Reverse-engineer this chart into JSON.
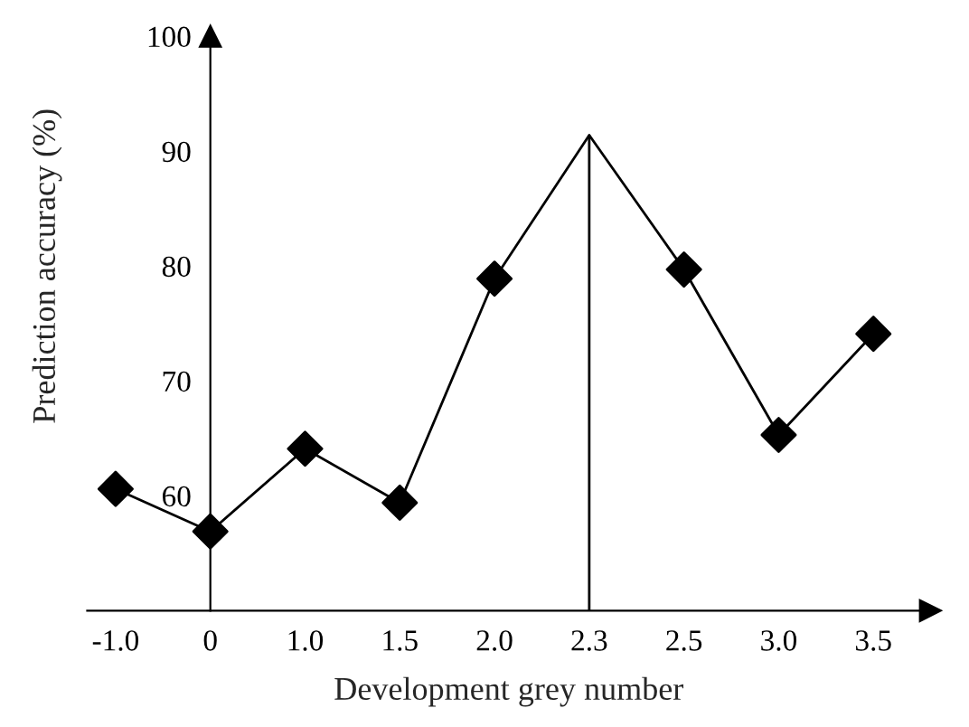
{
  "chart_data": {
    "type": "line",
    "xlabel": "Development grey number",
    "ylabel": "Prediction accuracy (%)",
    "categories": [
      "-1.0",
      "0",
      "1.0",
      "1.5",
      "2.0",
      "2.3",
      "2.5",
      "3.0",
      "3.5"
    ],
    "series": [
      {
        "color": "#000000",
        "marker": "none",
        "line_style": "solid",
        "values": [
          60.6,
          56.9,
          64.1,
          59.4,
          78.9,
          91.4,
          79.7,
          65.3,
          74.1
        ]
      },
      {
        "type": "scatter",
        "color": "#000000",
        "marker": "diamond",
        "values": [
          60.6,
          56.9,
          64.1,
          59.4,
          78.9,
          null,
          79.7,
          65.3,
          74.1
        ]
      }
    ],
    "ylim": [
      50,
      100
    ],
    "yticks": [
      60,
      70,
      80,
      90,
      100
    ],
    "ref_lines": [
      {
        "axis": "x",
        "value": "2.3",
        "color": "#000000"
      }
    ],
    "grid": false,
    "legend": false
  }
}
